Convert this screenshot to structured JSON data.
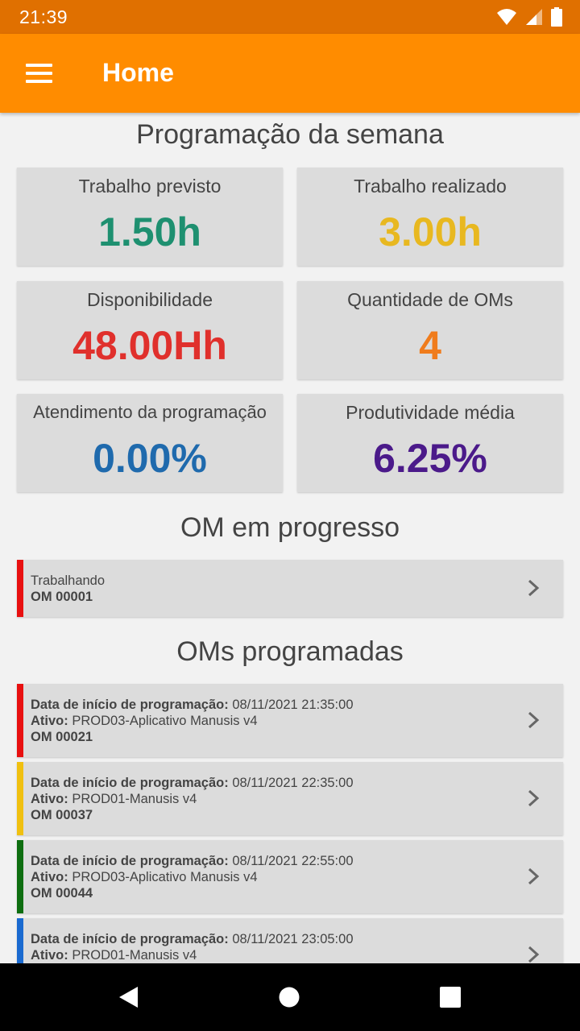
{
  "status_bar": {
    "time": "21:39",
    "icons": [
      "wifi-icon",
      "signal-icon",
      "battery-icon"
    ]
  },
  "app_bar": {
    "title": "Home",
    "menu_icon": "menu-icon"
  },
  "colors": {
    "primary": "#ff8c00",
    "status_bar": "#e07000",
    "green": "#1e9070",
    "yellow": "#e8b820",
    "red": "#e0302c",
    "orange": "#f07c1c",
    "blue": "#1f6aad",
    "purple": "#4b1a8a"
  },
  "week_schedule": {
    "title": "Programação da semana",
    "stats": [
      {
        "label": "Trabalho previsto",
        "value": "1.50h",
        "color": "#1e9070"
      },
      {
        "label": "Trabalho realizado",
        "value": "3.00h",
        "color": "#e8b820"
      },
      {
        "label": "Disponibilidade",
        "value": "48.00Hh",
        "color": "#e0302c"
      },
      {
        "label": "Quantidade de OMs",
        "value": "4",
        "color": "#f07c1c"
      },
      {
        "label": "Atendimento da programação",
        "value": "0.00%",
        "color": "#1f6aad"
      },
      {
        "label": "Produtividade média",
        "value": "6.25%",
        "color": "#4b1a8a"
      }
    ]
  },
  "in_progress": {
    "title": "OM em progresso",
    "items": [
      {
        "status": "Trabalhando",
        "om": "OM 00001",
        "bar_color": "#e81010"
      }
    ]
  },
  "scheduled": {
    "title": "OMs programadas",
    "start_label": "Data de início de programação:",
    "asset_label": "Ativo:",
    "items": [
      {
        "start": "08/11/2021 21:35:00",
        "asset": "PROD03-Aplicativo Manusis v4",
        "om": "OM 00021",
        "bar_color": "#e81010"
      },
      {
        "start": "08/11/2021 22:35:00",
        "asset": "PROD01-Manusis v4",
        "om": "OM 00037",
        "bar_color": "#f0c010"
      },
      {
        "start": "08/11/2021 22:55:00",
        "asset": "PROD03-Aplicativo Manusis v4",
        "om": "OM 00044",
        "bar_color": "#0e6e10"
      },
      {
        "start": "08/11/2021 23:05:00",
        "asset": "PROD01-Manusis v4",
        "om": "",
        "bar_color": "#1a6ad0"
      }
    ]
  },
  "nav": {
    "back_icon": "back-icon",
    "home_icon": "home-icon",
    "recents_icon": "recents-icon"
  }
}
